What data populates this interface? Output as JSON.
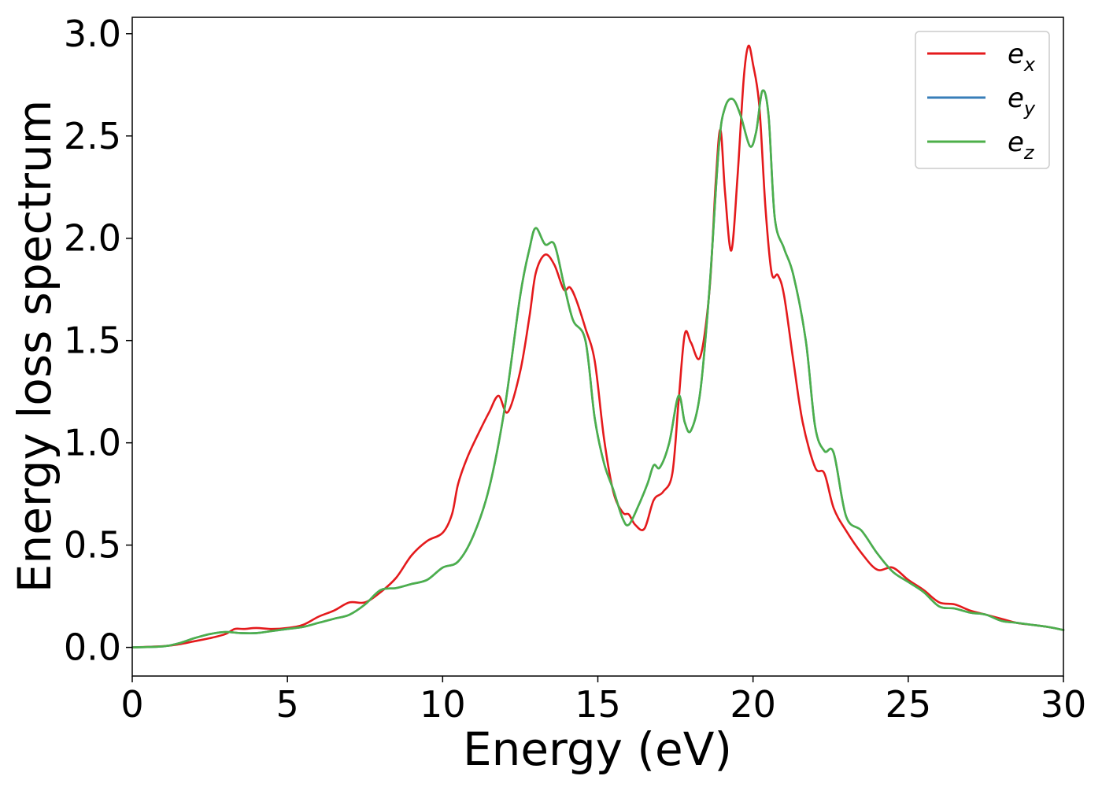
{
  "chart_data": {
    "type": "line",
    "title": "",
    "xlabel": "Energy (eV)",
    "ylabel": "Energy loss spectrum",
    "xlim": [
      0,
      30
    ],
    "ylim": [
      -0.14,
      3.08
    ],
    "xticks": [
      0,
      5,
      10,
      15,
      20,
      25,
      30
    ],
    "xtick_labels": [
      "0",
      "5",
      "10",
      "15",
      "20",
      "25",
      "30"
    ],
    "yticks": [
      0.0,
      0.5,
      1.0,
      1.5,
      2.0,
      2.5,
      3.0
    ],
    "ytick_labels": [
      "0.0",
      "0.5",
      "1.0",
      "1.5",
      "2.0",
      "2.5",
      "3.0"
    ],
    "grid": false,
    "legend_position": "top-right",
    "series": [
      {
        "name": "e_x",
        "legend_base": "e",
        "legend_sub": "x",
        "color": "#e41a1c",
        "x": [
          0,
          1,
          1.5,
          2,
          2.5,
          3,
          3.3,
          3.6,
          4,
          4.5,
          5,
          5.5,
          6,
          6.5,
          7,
          7.5,
          8,
          8.5,
          9,
          9.5,
          10,
          10.3,
          10.5,
          10.8,
          11.2,
          11.5,
          11.8,
          12.1,
          12.5,
          12.8,
          13.0,
          13.3,
          13.6,
          13.9,
          14.1,
          14.3,
          14.6,
          14.9,
          15.2,
          15.5,
          15.8,
          16.0,
          16.2,
          16.5,
          16.8,
          17.1,
          17.4,
          17.6,
          17.8,
          18.0,
          18.3,
          18.6,
          18.8,
          18.95,
          19.1,
          19.3,
          19.5,
          19.7,
          19.85,
          20.0,
          20.2,
          20.4,
          20.6,
          20.8,
          21.0,
          21.3,
          21.6,
          22.0,
          22.3,
          22.6,
          23.0,
          23.5,
          24.0,
          24.5,
          25.0,
          25.5,
          26.0,
          26.5,
          27.0,
          27.5,
          28.0,
          28.5,
          29.0,
          29.5,
          30.0
        ],
        "y": [
          0.0,
          0.006,
          0.015,
          0.03,
          0.045,
          0.065,
          0.09,
          0.09,
          0.095,
          0.09,
          0.095,
          0.11,
          0.15,
          0.18,
          0.22,
          0.22,
          0.27,
          0.34,
          0.45,
          0.52,
          0.56,
          0.65,
          0.8,
          0.93,
          1.06,
          1.15,
          1.23,
          1.15,
          1.35,
          1.62,
          1.83,
          1.92,
          1.87,
          1.75,
          1.76,
          1.7,
          1.56,
          1.4,
          1.02,
          0.76,
          0.66,
          0.65,
          0.6,
          0.58,
          0.72,
          0.76,
          0.85,
          1.2,
          1.53,
          1.49,
          1.42,
          1.75,
          2.28,
          2.53,
          2.22,
          1.94,
          2.3,
          2.78,
          2.94,
          2.85,
          2.65,
          2.15,
          1.83,
          1.82,
          1.72,
          1.4,
          1.1,
          0.88,
          0.85,
          0.68,
          0.57,
          0.46,
          0.38,
          0.39,
          0.33,
          0.28,
          0.22,
          0.21,
          0.18,
          0.16,
          0.14,
          0.12,
          0.11,
          0.1,
          0.085
        ]
      },
      {
        "name": "e_y",
        "legend_base": "e",
        "legend_sub": "y",
        "color": "#377eb8",
        "x": [
          0,
          1,
          1.5,
          2,
          2.5,
          3,
          3.5,
          4,
          4.5,
          5,
          5.5,
          6,
          6.5,
          7,
          7.5,
          8,
          8.5,
          9,
          9.5,
          10,
          10.5,
          11,
          11.5,
          12,
          12.5,
          12.8,
          13.0,
          13.3,
          13.6,
          13.9,
          14.2,
          14.6,
          14.9,
          15.2,
          15.5,
          15.8,
          16.0,
          16.3,
          16.6,
          16.8,
          17.0,
          17.3,
          17.6,
          17.8,
          18.0,
          18.3,
          18.6,
          18.9,
          19.1,
          19.35,
          19.6,
          19.9,
          20.1,
          20.3,
          20.5,
          20.7,
          21.0,
          21.3,
          21.7,
          22.0,
          22.3,
          22.6,
          23.0,
          23.5,
          24.0,
          24.5,
          25.0,
          25.5,
          26.0,
          26.5,
          27.0,
          27.5,
          28.0,
          28.5,
          29.0,
          29.5,
          30.0
        ],
        "y": [
          0.0,
          0.005,
          0.02,
          0.045,
          0.065,
          0.075,
          0.07,
          0.07,
          0.08,
          0.09,
          0.1,
          0.12,
          0.14,
          0.16,
          0.21,
          0.28,
          0.29,
          0.31,
          0.33,
          0.39,
          0.42,
          0.55,
          0.78,
          1.17,
          1.72,
          1.95,
          2.05,
          1.97,
          1.97,
          1.78,
          1.6,
          1.5,
          1.12,
          0.9,
          0.77,
          0.63,
          0.6,
          0.69,
          0.8,
          0.89,
          0.88,
          1.0,
          1.23,
          1.1,
          1.06,
          1.25,
          1.76,
          2.45,
          2.64,
          2.68,
          2.6,
          2.45,
          2.52,
          2.72,
          2.6,
          2.1,
          1.95,
          1.82,
          1.5,
          1.08,
          0.96,
          0.95,
          0.64,
          0.57,
          0.46,
          0.37,
          0.32,
          0.27,
          0.2,
          0.19,
          0.17,
          0.16,
          0.13,
          0.12,
          0.11,
          0.1,
          0.085
        ]
      },
      {
        "name": "e_z",
        "legend_base": "e",
        "legend_sub": "z",
        "color": "#4daf4a",
        "x": [
          0,
          1,
          1.5,
          2,
          2.5,
          3,
          3.5,
          4,
          4.5,
          5,
          5.5,
          6,
          6.5,
          7,
          7.5,
          8,
          8.5,
          9,
          9.5,
          10,
          10.5,
          11,
          11.5,
          12,
          12.5,
          12.8,
          13.0,
          13.3,
          13.6,
          13.9,
          14.2,
          14.6,
          14.9,
          15.2,
          15.5,
          15.8,
          16.0,
          16.3,
          16.6,
          16.8,
          17.0,
          17.3,
          17.6,
          17.8,
          18.0,
          18.3,
          18.6,
          18.9,
          19.1,
          19.35,
          19.6,
          19.9,
          20.1,
          20.3,
          20.5,
          20.7,
          21.0,
          21.3,
          21.7,
          22.0,
          22.3,
          22.6,
          23.0,
          23.5,
          24.0,
          24.5,
          25.0,
          25.5,
          26.0,
          26.5,
          27.0,
          27.5,
          28.0,
          28.5,
          29.0,
          29.5,
          30.0
        ],
        "y": [
          0.0,
          0.005,
          0.02,
          0.045,
          0.065,
          0.075,
          0.07,
          0.07,
          0.08,
          0.09,
          0.1,
          0.12,
          0.14,
          0.16,
          0.21,
          0.28,
          0.29,
          0.31,
          0.33,
          0.39,
          0.42,
          0.55,
          0.78,
          1.17,
          1.72,
          1.95,
          2.05,
          1.97,
          1.97,
          1.78,
          1.6,
          1.5,
          1.12,
          0.9,
          0.77,
          0.63,
          0.6,
          0.69,
          0.8,
          0.89,
          0.88,
          1.0,
          1.23,
          1.1,
          1.06,
          1.25,
          1.76,
          2.45,
          2.64,
          2.68,
          2.6,
          2.45,
          2.52,
          2.72,
          2.6,
          2.1,
          1.95,
          1.82,
          1.5,
          1.08,
          0.96,
          0.95,
          0.64,
          0.57,
          0.46,
          0.37,
          0.32,
          0.27,
          0.2,
          0.19,
          0.17,
          0.16,
          0.13,
          0.12,
          0.11,
          0.1,
          0.085
        ]
      }
    ]
  }
}
